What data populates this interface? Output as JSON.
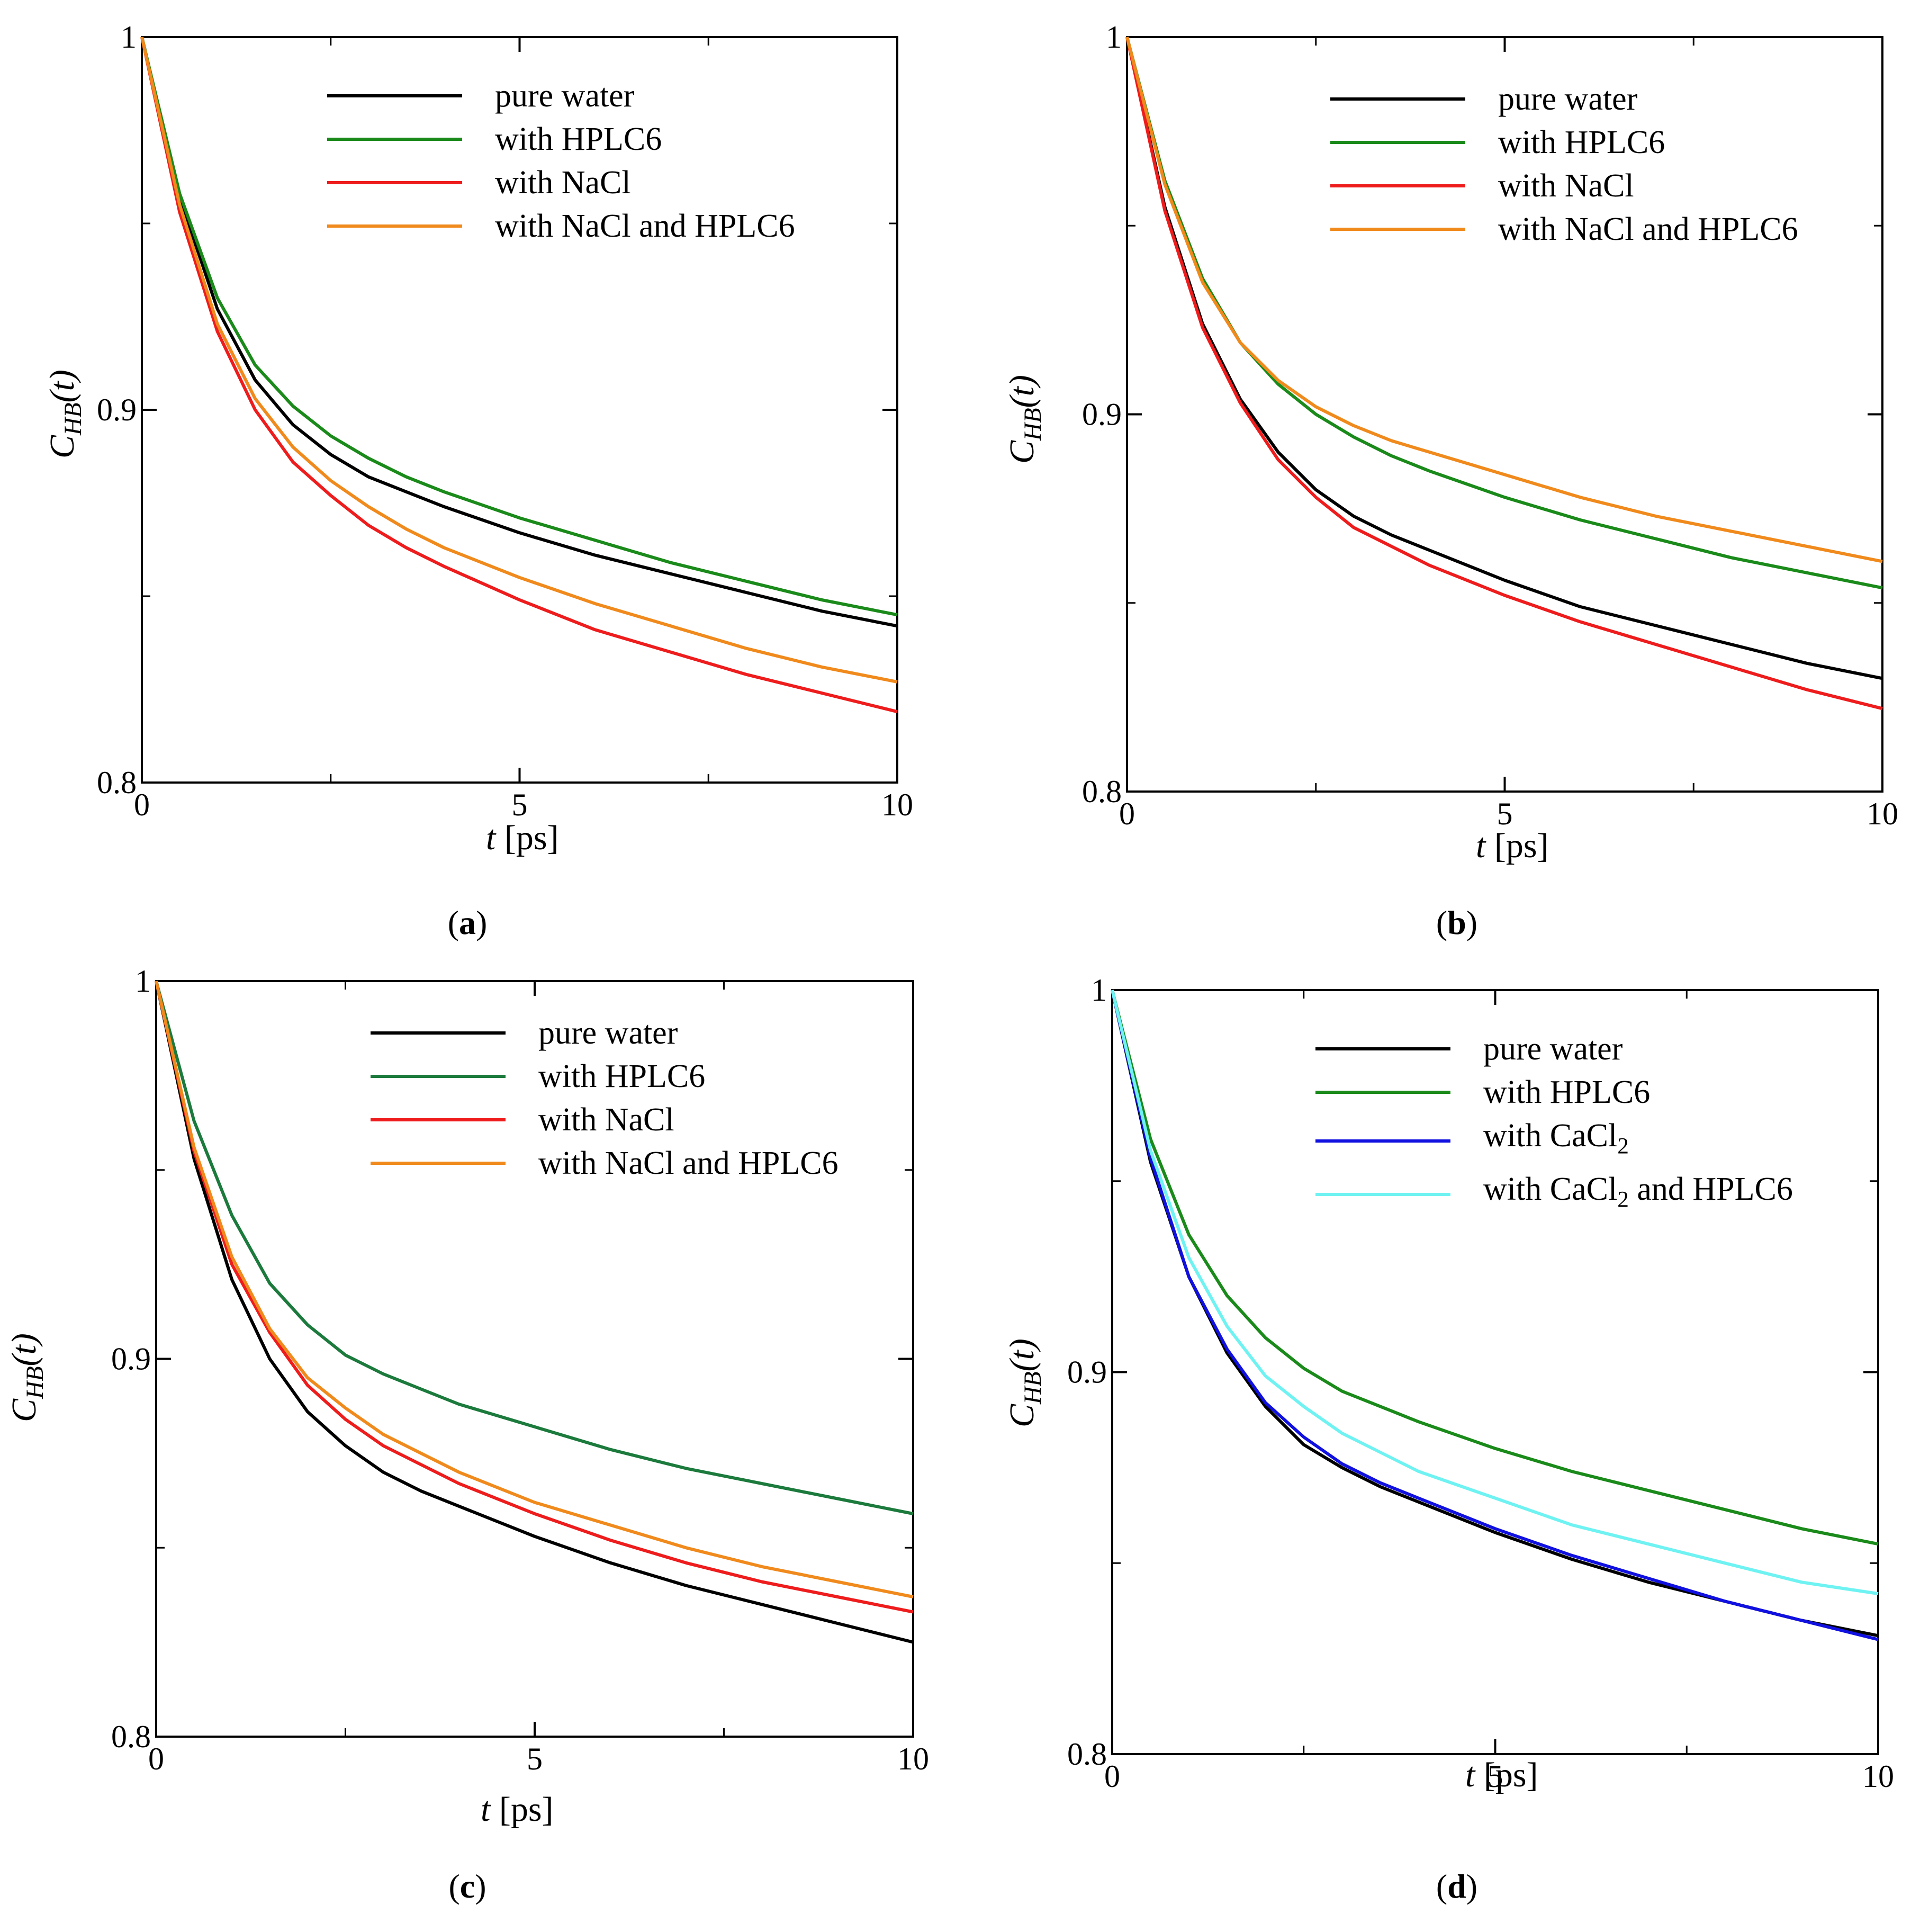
{
  "chart_data": [
    {
      "type": "line",
      "panel_label": "a",
      "xlabel_var": "t",
      "xlabel_unit": "[ps]",
      "ylabel_main": "C",
      "ylabel_sub": "HB",
      "ylabel_arg": "(t)",
      "xlim": [
        0,
        10
      ],
      "ylim": [
        0.8,
        1.0
      ],
      "xticks": [
        "0",
        "5",
        "10"
      ],
      "yticks": [
        "0.8",
        "0.9",
        "1"
      ],
      "x": [
        0,
        0.5,
        1,
        1.5,
        2,
        2.5,
        3,
        3.5,
        4,
        5,
        6,
        7,
        8,
        9,
        10
      ],
      "series": [
        {
          "name": "pure water",
          "color": "#000000",
          "values": [
            1.0,
            0.957,
            0.927,
            0.908,
            0.896,
            0.888,
            0.882,
            0.878,
            0.874,
            0.867,
            0.861,
            0.856,
            0.851,
            0.846,
            0.842
          ]
        },
        {
          "name": "with HPLC6",
          "color": "#1a8a1a",
          "values": [
            1.0,
            0.958,
            0.93,
            0.912,
            0.901,
            0.893,
            0.887,
            0.882,
            0.878,
            0.871,
            0.865,
            0.859,
            0.854,
            0.849,
            0.845
          ]
        },
        {
          "name": "with NaCl",
          "color": "#ee1c1c",
          "values": [
            1.0,
            0.953,
            0.921,
            0.9,
            0.886,
            0.877,
            0.869,
            0.863,
            0.858,
            0.849,
            0.841,
            0.835,
            0.829,
            0.824,
            0.819
          ]
        },
        {
          "name": "with NaCl and HPLC6",
          "color": "#f08a1c",
          "values": [
            1.0,
            0.955,
            0.923,
            0.903,
            0.89,
            0.881,
            0.874,
            0.868,
            0.863,
            0.855,
            0.848,
            0.842,
            0.836,
            0.831,
            0.827
          ]
        }
      ]
    },
    {
      "type": "line",
      "panel_label": "b",
      "xlabel_var": "t",
      "xlabel_unit": "[ps]",
      "ylabel_main": "C",
      "ylabel_sub": "HB",
      "ylabel_arg": "(t)",
      "xlim": [
        0,
        10
      ],
      "ylim": [
        0.8,
        1.0
      ],
      "xticks": [
        "0",
        "5",
        "10"
      ],
      "yticks": [
        "0.8",
        "0.9",
        "1"
      ],
      "x": [
        0,
        0.5,
        1,
        1.5,
        2,
        2.5,
        3,
        3.5,
        4,
        5,
        6,
        7,
        8,
        9,
        10
      ],
      "series": [
        {
          "name": "pure water",
          "color": "#000000",
          "values": [
            1.0,
            0.955,
            0.924,
            0.904,
            0.89,
            0.88,
            0.873,
            0.868,
            0.864,
            0.856,
            0.849,
            0.844,
            0.839,
            0.834,
            0.83
          ]
        },
        {
          "name": "with HPLC6",
          "color": "#1a8a1a",
          "values": [
            1.0,
            0.962,
            0.936,
            0.919,
            0.908,
            0.9,
            0.894,
            0.889,
            0.885,
            0.878,
            0.872,
            0.867,
            0.862,
            0.858,
            0.854
          ]
        },
        {
          "name": "with NaCl",
          "color": "#ee1c1c",
          "values": [
            1.0,
            0.954,
            0.923,
            0.903,
            0.888,
            0.878,
            0.87,
            0.865,
            0.86,
            0.852,
            0.845,
            0.839,
            0.833,
            0.827,
            0.822
          ]
        },
        {
          "name": "with NaCl and HPLC6",
          "color": "#f08a1c",
          "values": [
            1.0,
            0.961,
            0.935,
            0.919,
            0.909,
            0.902,
            0.897,
            0.893,
            0.89,
            0.884,
            0.878,
            0.873,
            0.869,
            0.865,
            0.861
          ]
        }
      ]
    },
    {
      "type": "line",
      "panel_label": "c",
      "xlabel_var": "t",
      "xlabel_unit": "[ps]",
      "ylabel_main": "C",
      "ylabel_sub": "HB",
      "ylabel_arg": "(t)",
      "xlim": [
        0,
        10
      ],
      "ylim": [
        0.8,
        1.0
      ],
      "xticks": [
        "0",
        "5",
        "10"
      ],
      "yticks": [
        "0.8",
        "0.9",
        "1"
      ],
      "x": [
        0,
        0.5,
        1,
        1.5,
        2,
        2.5,
        3,
        3.5,
        4,
        5,
        6,
        7,
        8,
        9,
        10
      ],
      "series": [
        {
          "name": "pure water",
          "color": "#000000",
          "values": [
            1.0,
            0.953,
            0.921,
            0.9,
            0.886,
            0.877,
            0.87,
            0.865,
            0.861,
            0.853,
            0.846,
            0.84,
            0.835,
            0.83,
            0.825
          ]
        },
        {
          "name": "with HPLC6",
          "color": "#1b7a3c",
          "values": [
            1.0,
            0.963,
            0.938,
            0.92,
            0.909,
            0.901,
            0.896,
            0.892,
            0.888,
            0.882,
            0.876,
            0.871,
            0.867,
            0.863,
            0.859
          ]
        },
        {
          "name": "with NaCl",
          "color": "#ee1c1c",
          "values": [
            1.0,
            0.955,
            0.925,
            0.907,
            0.893,
            0.884,
            0.877,
            0.872,
            0.867,
            0.859,
            0.852,
            0.846,
            0.841,
            0.837,
            0.833
          ]
        },
        {
          "name": "with NaCl and HPLC6",
          "color": "#f08a1c",
          "values": [
            1.0,
            0.956,
            0.927,
            0.908,
            0.895,
            0.887,
            0.88,
            0.875,
            0.87,
            0.862,
            0.856,
            0.85,
            0.845,
            0.841,
            0.837
          ]
        }
      ]
    },
    {
      "type": "line",
      "panel_label": "d",
      "xlabel_var": "t",
      "xlabel_unit": "[ps]",
      "ylabel_main": "C",
      "ylabel_sub": "HB",
      "ylabel_arg": "(t)",
      "xlim": [
        0,
        10
      ],
      "ylim": [
        0.8,
        1.0
      ],
      "xticks": [
        "0",
        "5",
        "10"
      ],
      "yticks": [
        "0.8",
        "0.9",
        "1"
      ],
      "x": [
        0,
        0.5,
        1,
        1.5,
        2,
        2.5,
        3,
        3.5,
        4,
        5,
        6,
        7,
        8,
        9,
        10
      ],
      "series": [
        {
          "name": "pure water",
          "color": "#000000",
          "values": [
            1.0,
            0.955,
            0.925,
            0.905,
            0.891,
            0.881,
            0.875,
            0.87,
            0.866,
            0.858,
            0.851,
            0.845,
            0.84,
            0.835,
            0.831
          ]
        },
        {
          "name": "with HPLC6",
          "color": "#1a8a1a",
          "values": [
            1.0,
            0.961,
            0.936,
            0.92,
            0.909,
            0.901,
            0.895,
            0.891,
            0.887,
            0.88,
            0.874,
            0.869,
            0.864,
            0.859,
            0.855
          ]
        },
        {
          "name": "with CaCl",
          "name_sub": "2",
          "color": "#1010e0",
          "values": [
            1.0,
            0.956,
            0.925,
            0.906,
            0.892,
            0.883,
            0.876,
            0.871,
            0.867,
            0.859,
            0.852,
            0.846,
            0.84,
            0.835,
            0.83
          ]
        },
        {
          "name": "with CaCl",
          "name_sub": "2",
          "name_suffix": " and HPLC6",
          "color": "#6ff2f2",
          "values": [
            1.0,
            0.958,
            0.93,
            0.912,
            0.899,
            0.891,
            0.884,
            0.879,
            0.874,
            0.867,
            0.86,
            0.855,
            0.85,
            0.845,
            0.842
          ]
        }
      ]
    }
  ]
}
